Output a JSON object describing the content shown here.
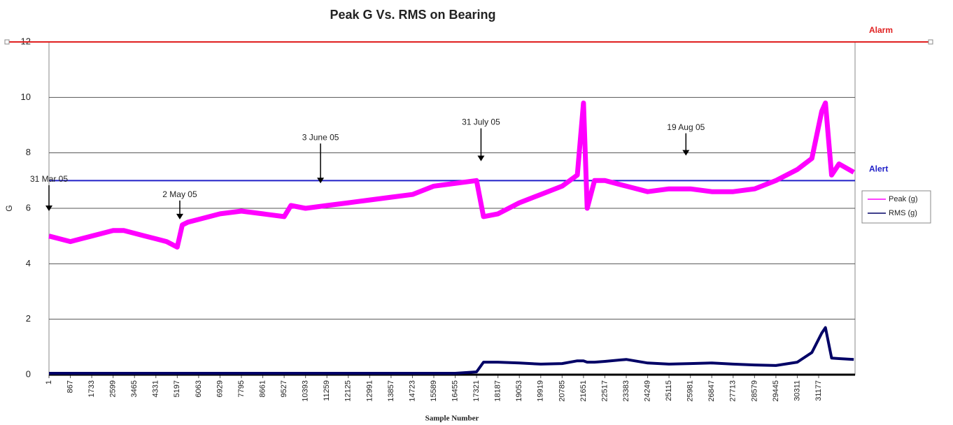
{
  "chart_data": {
    "type": "line",
    "title": "Peak G Vs. RMS on Bearing",
    "x_label": "Sample Number",
    "y_label": "G",
    "xlim": [
      1,
      32650
    ],
    "xticks": [
      1,
      867,
      1733,
      2599,
      3465,
      4331,
      5197,
      6063,
      6929,
      7795,
      8661,
      9527,
      10393,
      11259,
      12125,
      12991,
      13857,
      14723,
      15589,
      16455,
      17321,
      18187,
      19053,
      19919,
      20785,
      21651,
      22517,
      23383,
      24249,
      25115,
      25981,
      26847,
      27713,
      28579,
      29445,
      30311,
      31177
    ],
    "ylim": [
      0,
      12
    ],
    "yticks": [
      0,
      2,
      4,
      6,
      8,
      10,
      12
    ],
    "grid": true,
    "legend": "right",
    "x": [
      1,
      433,
      867,
      1300,
      1733,
      2166,
      2599,
      3032,
      3465,
      3898,
      4331,
      4764,
      5197,
      5400,
      5630,
      6063,
      6929,
      7795,
      8661,
      9527,
      9800,
      10393,
      11259,
      12125,
      12991,
      13857,
      14723,
      15589,
      16455,
      17321,
      17600,
      18187,
      19053,
      19919,
      20785,
      21400,
      21651,
      21800,
      22100,
      22517,
      23383,
      24249,
      25115,
      25981,
      26847,
      27713,
      28579,
      29445,
      30311,
      30900,
      31300,
      31450,
      31700,
      32000,
      32600
    ],
    "series": [
      {
        "name": "Peak (g)",
        "color": "#ff00ff",
        "values": [
          5.0,
          4.9,
          4.8,
          4.9,
          5.0,
          5.1,
          5.2,
          5.2,
          5.1,
          5.0,
          4.9,
          4.8,
          4.6,
          5.4,
          5.5,
          5.6,
          5.8,
          5.9,
          5.8,
          5.7,
          6.1,
          6.0,
          6.1,
          6.2,
          6.3,
          6.4,
          6.5,
          6.8,
          6.9,
          7.0,
          5.7,
          5.8,
          6.2,
          6.5,
          6.8,
          7.2,
          9.8,
          6.0,
          7.0,
          7.0,
          6.8,
          6.6,
          6.7,
          6.7,
          6.6,
          6.6,
          6.7,
          7.0,
          7.4,
          7.8,
          9.5,
          9.8,
          7.2,
          7.6,
          7.3
        ]
      },
      {
        "name": "RMS (g)",
        "color": "#000066",
        "values": [
          0.05,
          0.05,
          0.05,
          0.05,
          0.05,
          0.05,
          0.05,
          0.05,
          0.05,
          0.05,
          0.05,
          0.05,
          0.05,
          0.05,
          0.05,
          0.05,
          0.05,
          0.05,
          0.05,
          0.05,
          0.05,
          0.05,
          0.05,
          0.05,
          0.05,
          0.05,
          0.05,
          0.05,
          0.05,
          0.1,
          0.45,
          0.45,
          0.42,
          0.38,
          0.4,
          0.5,
          0.5,
          0.45,
          0.45,
          0.48,
          0.55,
          0.42,
          0.38,
          0.4,
          0.42,
          0.38,
          0.35,
          0.33,
          0.45,
          0.8,
          1.5,
          1.7,
          0.6,
          0.58,
          0.55
        ]
      }
    ],
    "thresholds": [
      {
        "label": "Alarm",
        "value": 12,
        "color": "#e02020"
      },
      {
        "label": "Alert",
        "value": 7,
        "color": "#2020c8"
      }
    ],
    "annotations": [
      {
        "text": "31 Mar 05",
        "x": 1,
        "y": 5.9
      },
      {
        "text": "2 May 05",
        "x": 5300,
        "y": 5.6
      },
      {
        "text": "3 June 05",
        "x": 11000,
        "y": 6.9
      },
      {
        "text": "31 July 05",
        "x": 17500,
        "y": 7.7
      },
      {
        "text": "19 Aug 05",
        "x": 25800,
        "y": 7.9
      }
    ]
  }
}
